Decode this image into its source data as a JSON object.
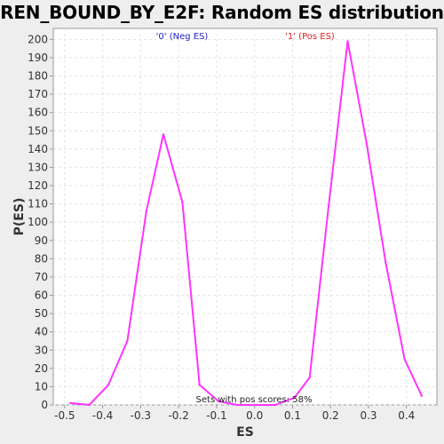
{
  "chart_data": {
    "type": "line",
    "title": "REN_BOUND_BY_E2F: Random ES distribution",
    "xlabel": "ES",
    "ylabel": "P(ES)",
    "xlim": [
      -0.53,
      0.48
    ],
    "ylim": [
      0,
      206
    ],
    "x_ticks": [
      "-0.5",
      "-0.4",
      "-0.3",
      "-0.2",
      "-0.1",
      "0.0",
      "0.1",
      "0.2",
      "0.3",
      "0.4"
    ],
    "x_tick_values": [
      -0.5,
      -0.4,
      -0.3,
      -0.2,
      -0.1,
      0.0,
      0.1,
      0.2,
      0.3,
      0.4
    ],
    "y_ticks": [
      "0",
      "10",
      "20",
      "30",
      "40",
      "50",
      "60",
      "70",
      "80",
      "90",
      "100",
      "110",
      "120",
      "130",
      "140",
      "150",
      "160",
      "170",
      "180",
      "190",
      "200"
    ],
    "y_tick_values": [
      0,
      10,
      20,
      30,
      40,
      50,
      60,
      70,
      80,
      90,
      100,
      110,
      120,
      130,
      140,
      150,
      160,
      170,
      180,
      190,
      200
    ],
    "grid": true,
    "series": [
      {
        "color": "#ff33ff",
        "x": [
          -0.485,
          -0.435,
          -0.385,
          -0.335,
          -0.285,
          -0.24,
          -0.19,
          -0.145,
          -0.095,
          -0.045,
          0.005,
          0.055,
          0.105,
          0.145,
          0.195,
          0.245,
          0.295,
          0.345,
          0.395,
          0.44
        ],
        "y": [
          1,
          0,
          11,
          35,
          106,
          148,
          111,
          11,
          2,
          0,
          0,
          0,
          4,
          15,
          109,
          199,
          143,
          78,
          25,
          5
        ]
      }
    ],
    "annotations": {
      "neg": {
        "text": "'0' (Neg ES)",
        "color": "#2222cc"
      },
      "pos": {
        "text": "'1' (Pos ES)",
        "color": "#dd2222"
      },
      "footer": {
        "text": "Sets with pos scores: 58%",
        "color": "#222222"
      }
    },
    "colors": {
      "plot_bg": "#ffffff",
      "grid": "#e4e4e4",
      "axis": "#999999"
    }
  }
}
